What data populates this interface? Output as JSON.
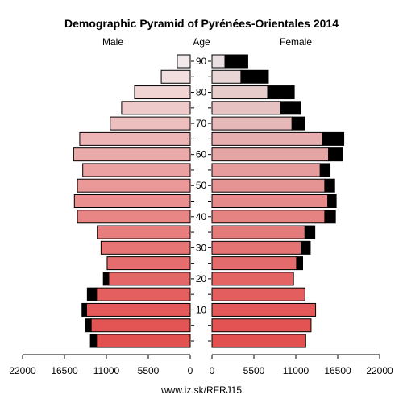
{
  "chart_data": {
    "type": "bar",
    "title": "Demographic Pyramid of Pyrénées-Orientales 2014",
    "left_label": "Male",
    "center_label": "Age",
    "right_label": "Female",
    "footer": "www.iz.sk/RFRJ15",
    "age_ticks": [
      "10",
      "20",
      "30",
      "40",
      "50",
      "60",
      "70",
      "80",
      "90"
    ],
    "x_ticks_left": [
      "22000",
      "16500",
      "11000",
      "5500",
      "0"
    ],
    "x_ticks_right": [
      "0",
      "5500",
      "11000",
      "16500",
      "22000"
    ],
    "xlim": [
      0,
      22000
    ],
    "age_groups": [
      "0-4",
      "5-9",
      "10-14",
      "15-19",
      "20-24",
      "25-29",
      "30-34",
      "35-39",
      "40-44",
      "45-49",
      "50-54",
      "55-59",
      "60-64",
      "65-69",
      "70-74",
      "75-79",
      "80-84",
      "85-89",
      "90+"
    ],
    "series": [
      {
        "name": "Male",
        "values": [
          12300,
          13000,
          13600,
          12300,
          10700,
          10900,
          11700,
          12200,
          14800,
          15200,
          14800,
          14100,
          15300,
          14500,
          10500,
          9000,
          7300,
          3800,
          1700
        ],
        "excess": [
          800,
          700,
          600,
          1200,
          700,
          0,
          0,
          0,
          0,
          0,
          0,
          0,
          0,
          0,
          0,
          0,
          0,
          0,
          0
        ]
      },
      {
        "name": "Female",
        "values": [
          12300,
          13000,
          13600,
          12200,
          10700,
          11100,
          11700,
          12200,
          14800,
          15200,
          14800,
          14200,
          15300,
          14500,
          10500,
          9000,
          7300,
          3800,
          1700
        ],
        "excess": [
          0,
          0,
          0,
          0,
          0,
          800,
          1200,
          1300,
          1400,
          1100,
          1300,
          1300,
          1800,
          2800,
          1700,
          2600,
          3500,
          3600,
          3000
        ]
      }
    ],
    "colors": {
      "male_young": "#e35050",
      "male_old": "#f2eaea",
      "female_young": "#e35050",
      "female_old": "#e8e0e0",
      "excess": "#000000",
      "outline": "#000000"
    }
  }
}
